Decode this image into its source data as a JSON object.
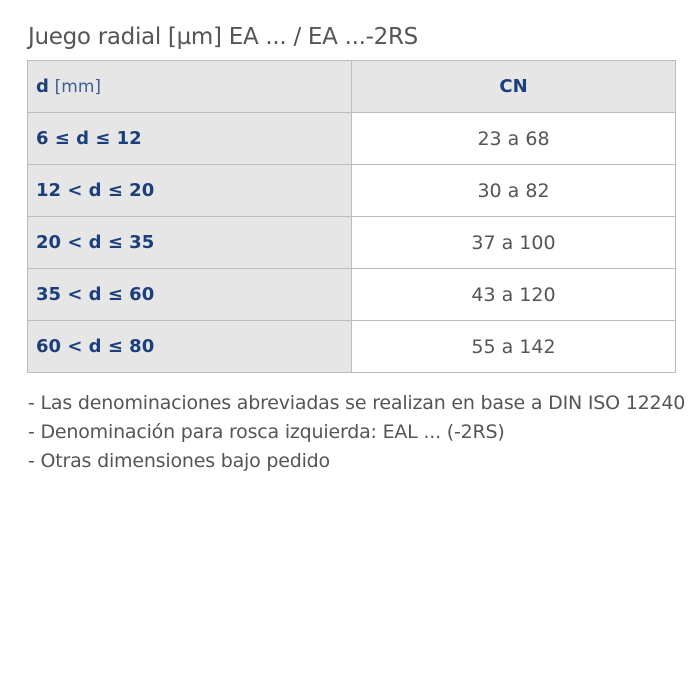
{
  "title": "Juego radial [µm] EA ... / EA ...-2RS",
  "table": {
    "header": {
      "d_symbol": "d",
      "d_unit": "[mm]",
      "cn": "CN"
    },
    "rows": [
      {
        "range": "6 ≤ d ≤ 12",
        "value": "23 a 68"
      },
      {
        "range": "12 < d ≤ 20",
        "value": "30 a 82"
      },
      {
        "range": "20 < d ≤ 35",
        "value": "37 a 100"
      },
      {
        "range": "35 < d ≤ 60",
        "value": "43 a 120"
      },
      {
        "range": "60 < d ≤ 80",
        "value": "55 a 142"
      }
    ]
  },
  "notes": [
    "- Las denominaciones abreviadas se realizan en base a DIN ISO 12240",
    "- Denominación para rosca izquierda: EAL ... (-2RS)",
    "- Otras dimensiones bajo pedido"
  ],
  "colors": {
    "label_blue": "#1b3f7a",
    "header_gray": "#e6e6e6",
    "border": "#bcbcbc",
    "text_gray": "#555555"
  }
}
